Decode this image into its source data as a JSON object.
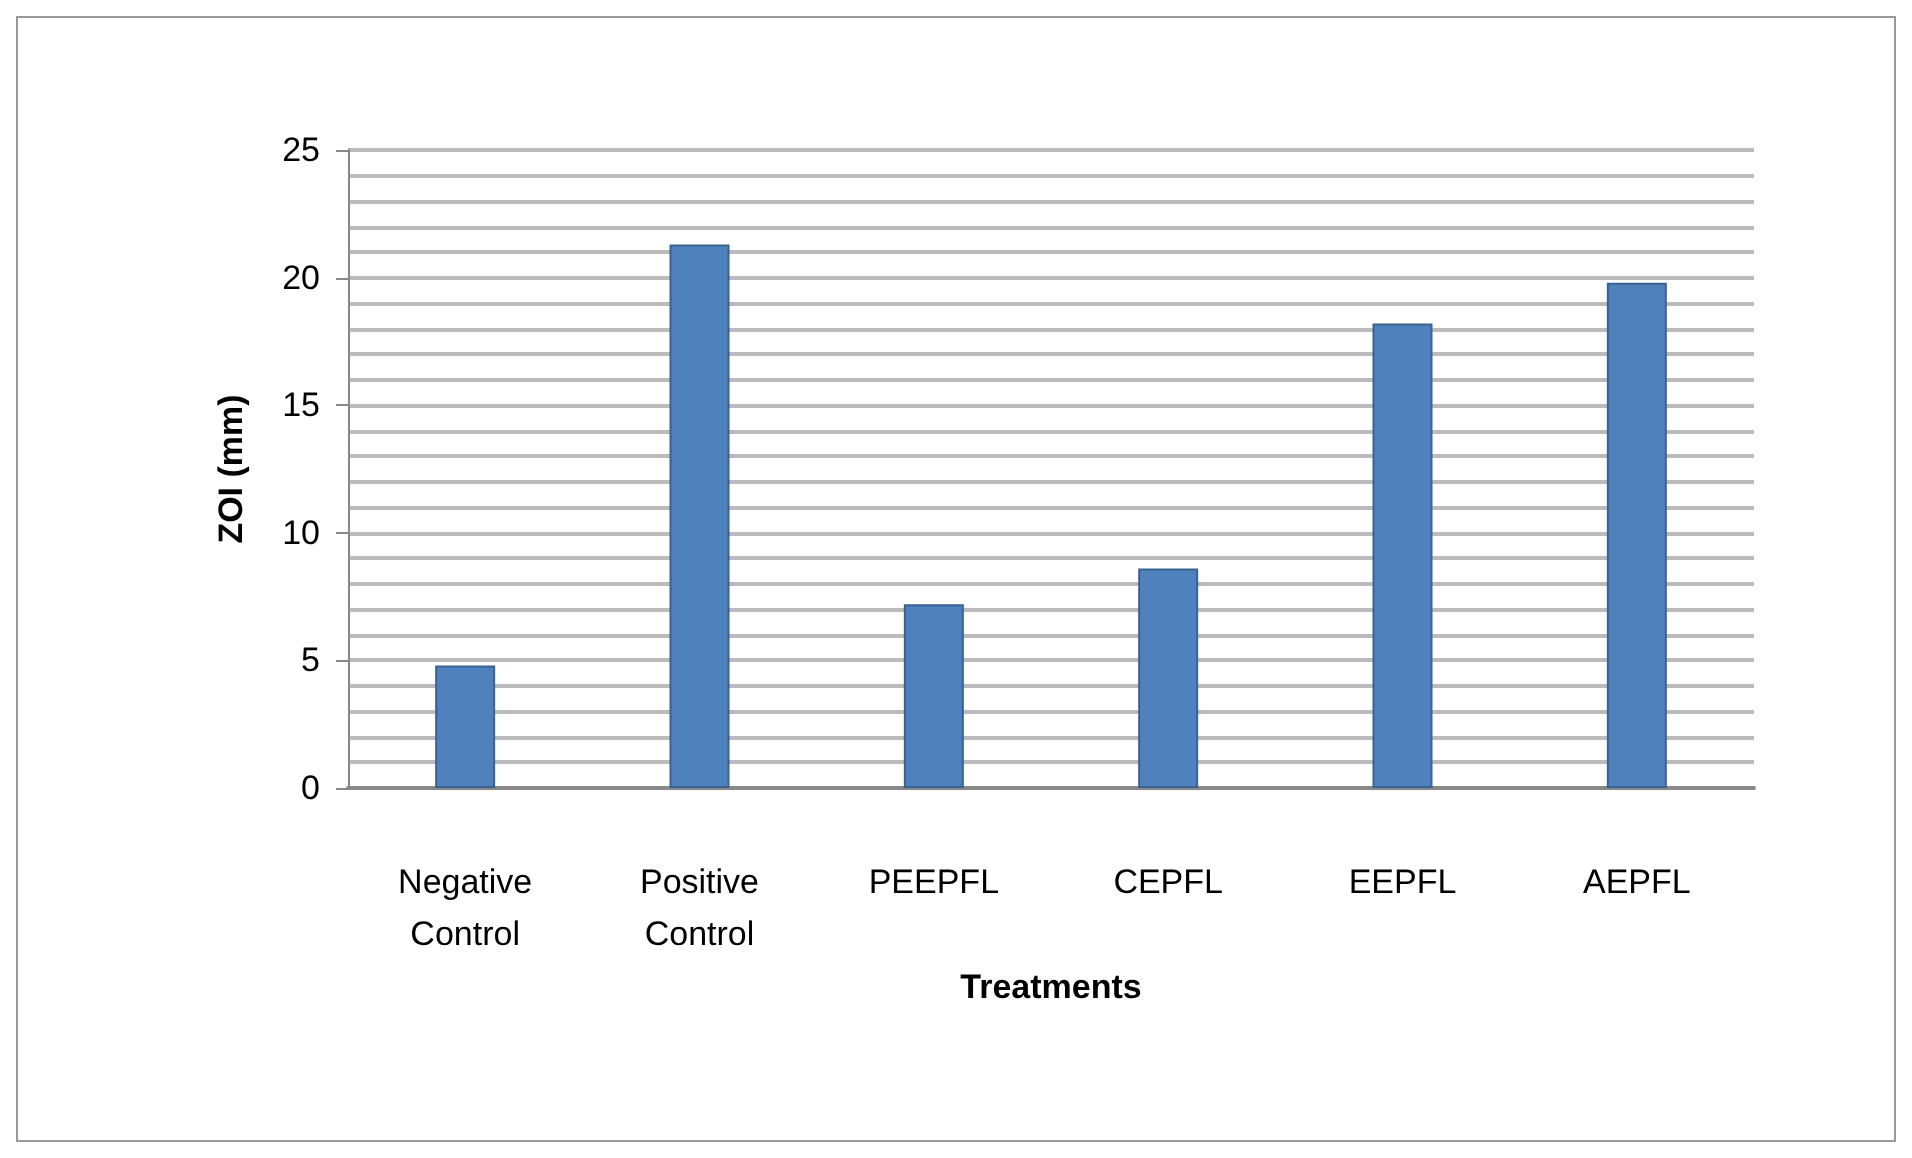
{
  "chart_data": {
    "type": "bar",
    "xlabel": "Treatments",
    "ylabel": "ZOI (mm)",
    "categories": [
      "Negative\nControl",
      "Positive\nControl",
      "PEEPFL",
      "CEPFL",
      "EEPFL",
      "AEPFL"
    ],
    "values": [
      4.8,
      21.3,
      7.2,
      8.6,
      18.2,
      19.8
    ],
    "color": "#4f81bd",
    "ylim": [
      0,
      25
    ],
    "yticks": [
      0,
      5,
      10,
      15,
      20,
      25
    ],
    "grid": "y"
  }
}
